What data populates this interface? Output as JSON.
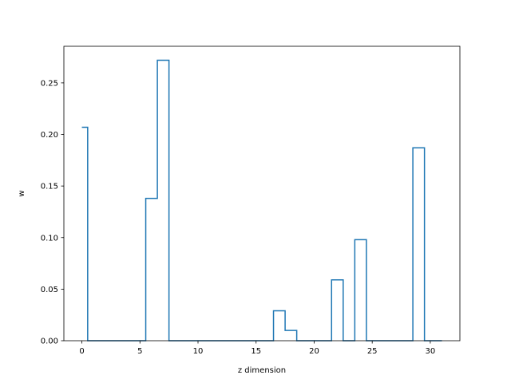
{
  "chart_data": {
    "type": "line",
    "drawstyle": "steps-mid",
    "title": "",
    "xlabel": "z dimension",
    "ylabel": "w",
    "xlim": [
      -1.55,
      32.55
    ],
    "ylim": [
      0,
      0.2855
    ],
    "xticks": [
      0,
      5,
      10,
      15,
      20,
      25,
      30
    ],
    "xtick_labels": [
      "0",
      "5",
      "10",
      "15",
      "20",
      "25",
      "30"
    ],
    "yticks": [
      0.0,
      0.05,
      0.1,
      0.15,
      0.2,
      0.25
    ],
    "ytick_labels": [
      "0.00",
      "0.05",
      "0.10",
      "0.15",
      "0.20",
      "0.25"
    ],
    "grid": false,
    "legend": "none",
    "series": [
      {
        "color": "#1f77b4",
        "x": [
          0,
          1,
          2,
          3,
          4,
          5,
          6,
          7,
          8,
          9,
          10,
          11,
          12,
          13,
          14,
          15,
          16,
          17,
          18,
          19,
          20,
          21,
          22,
          23,
          24,
          25,
          26,
          27,
          28,
          29,
          30,
          31
        ],
        "y": [
          0.207,
          0,
          0,
          0,
          0,
          0,
          0.138,
          0.272,
          0,
          0,
          0,
          0,
          0,
          0,
          0,
          0,
          0,
          0.029,
          0.01,
          0,
          0,
          0,
          0.059,
          0,
          0.098,
          0,
          0,
          0,
          0,
          0.187,
          0,
          0
        ]
      }
    ]
  }
}
